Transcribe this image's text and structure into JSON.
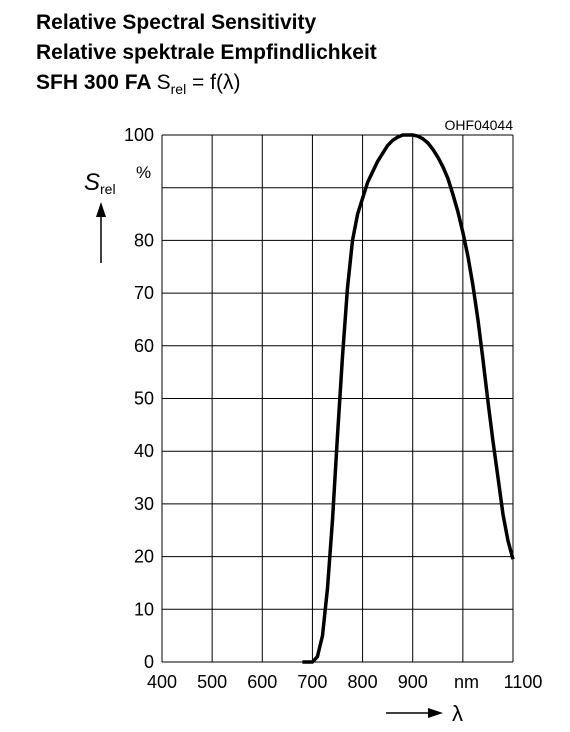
{
  "header": {
    "title_en": "Relative Spectral Sensitivity",
    "title_de": "Relative spektrale Empfindlichkeit",
    "device": "SFH 300 FA",
    "formula_main": "S",
    "formula_sub": "rel",
    "formula_tail": " = f(λ)"
  },
  "chart_data": {
    "type": "line",
    "code": "OHF04044",
    "ylabel_symbol": "S",
    "ylabel_sub": "rel",
    "ylabel_unit": "%",
    "xlabel_symbol": "λ",
    "xlabel_unit": "nm",
    "xlim": [
      400,
      1100
    ],
    "ylim": [
      0,
      100
    ],
    "x_ticks": [
      400,
      500,
      600,
      700,
      800,
      900,
      1100
    ],
    "x_tick_labels": [
      "400",
      "500",
      "600",
      "700",
      "800",
      "900",
      "1100"
    ],
    "y_ticks": [
      0,
      10,
      20,
      30,
      40,
      50,
      60,
      70,
      80,
      100
    ],
    "y_tick_labels": [
      "0",
      "10",
      "20",
      "30",
      "40",
      "50",
      "60",
      "70",
      "80",
      "100"
    ],
    "grid": true,
    "series": [
      {
        "x": [
          680,
          700,
          710,
          720,
          730,
          740,
          750,
          760,
          770,
          780,
          790,
          800,
          810,
          820,
          830,
          840,
          850,
          860,
          870,
          880,
          890,
          900,
          910,
          920,
          930,
          940,
          950,
          960,
          970,
          980,
          990,
          1000,
          1010,
          1020,
          1030,
          1040,
          1050,
          1060,
          1070,
          1080,
          1090,
          1100
        ],
        "y": [
          0,
          0,
          1,
          5,
          14,
          27,
          43,
          58,
          71,
          80,
          85,
          88,
          91,
          93,
          95,
          96.5,
          98,
          99,
          99.6,
          100,
          100,
          100,
          99.8,
          99.3,
          98.5,
          97.3,
          95.8,
          94,
          91.8,
          88.8,
          85.5,
          81.5,
          77,
          71.5,
          65,
          57.5,
          49.5,
          42,
          35,
          28,
          23,
          19.5
        ]
      }
    ]
  }
}
